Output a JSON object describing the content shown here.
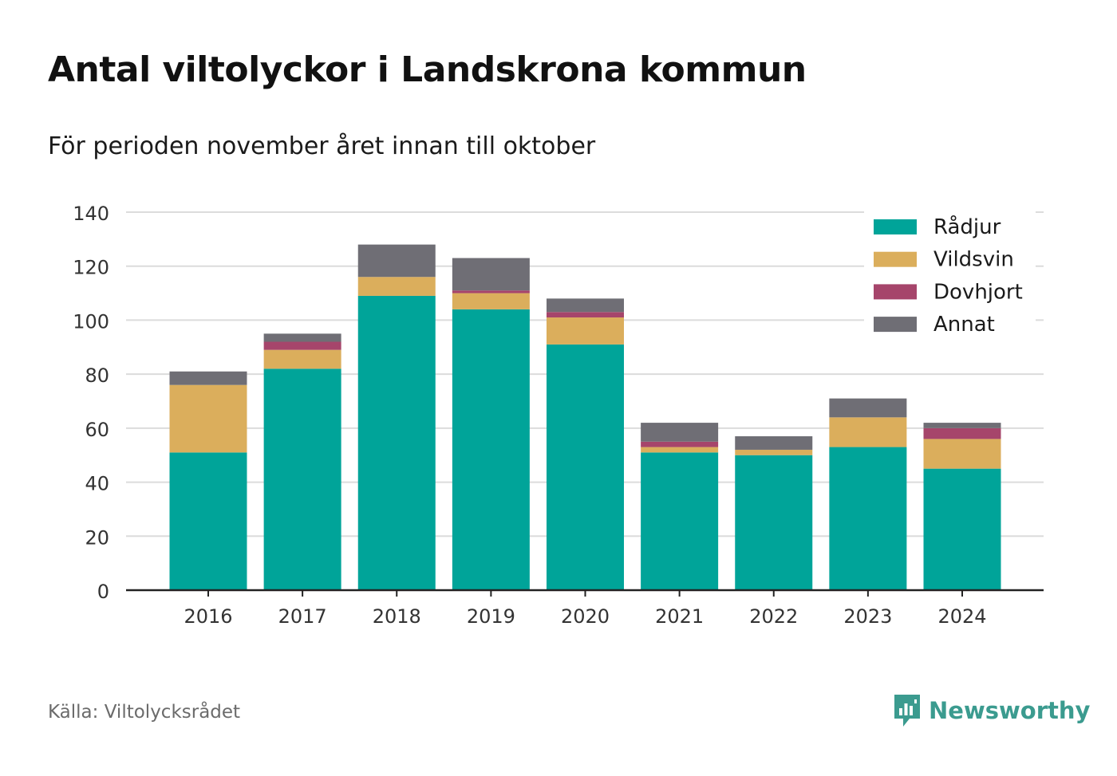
{
  "colors": {
    "Rådjur": "#00a499",
    "Vildsvin": "#dbae5c",
    "Dovhjort": "#a6456b",
    "Annat": "#6f6e75",
    "brand": "#3b9b8f"
  },
  "footer": {
    "source": "Källa: Viltolycksrådet",
    "brand": "Newsworthy",
    "brand_icon": "bar-chart-speech-bubble-icon"
  },
  "chart_data": {
    "type": "bar",
    "stacked": true,
    "title": "Antal viltolyckor i Landskrona kommun",
    "subtitle": "För perioden november året innan till oktober",
    "categories": [
      "2016",
      "2017",
      "2018",
      "2019",
      "2020",
      "2021",
      "2022",
      "2023",
      "2024"
    ],
    "series": [
      {
        "name": "Rådjur",
        "values": [
          51,
          82,
          109,
          104,
          91,
          51,
          50,
          53,
          45
        ]
      },
      {
        "name": "Vildsvin",
        "values": [
          25,
          7,
          7,
          6,
          10,
          2,
          2,
          11,
          11
        ]
      },
      {
        "name": "Dovhjort",
        "values": [
          0,
          3,
          0,
          1,
          2,
          2,
          0,
          0,
          4
        ]
      },
      {
        "name": "Annat",
        "values": [
          5,
          3,
          12,
          12,
          5,
          7,
          5,
          7,
          2
        ]
      }
    ],
    "ylim": [
      0,
      140
    ],
    "yticks": [
      0,
      20,
      40,
      60,
      80,
      100,
      120,
      140
    ],
    "xlabel": "",
    "ylabel": "",
    "grid": true,
    "legend_position": "top-right"
  }
}
